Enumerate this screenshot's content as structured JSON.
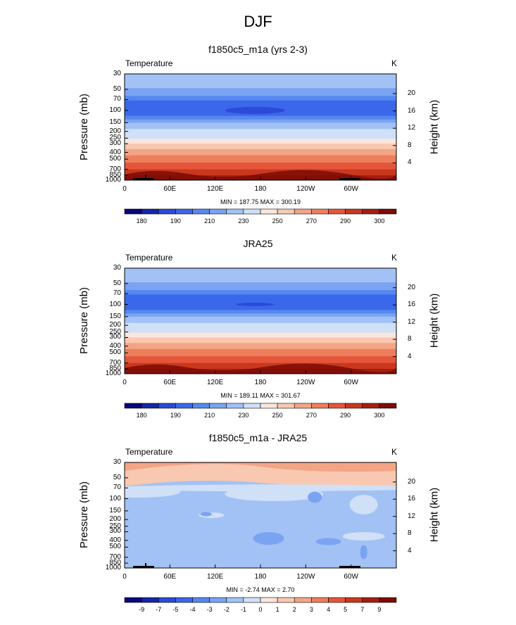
{
  "page": {
    "title": "DJF"
  },
  "chart_data": [
    {
      "type": "heatmap",
      "title": "f1850c5_m1a (yrs 2-3)",
      "variable": "Temperature",
      "units": "K",
      "ylabel": "Pressure (mb)",
      "y2label": "Height (km)",
      "xticks": [
        "0",
        "60E",
        "120E",
        "180",
        "120W",
        "60W"
      ],
      "yticks": [
        "30",
        "50",
        "70",
        "100",
        "150",
        "200",
        "250",
        "300",
        "400",
        "500",
        "700",
        "850",
        "1000"
      ],
      "heightticks": [
        "4",
        "8",
        "12",
        "16",
        "20"
      ],
      "min_max": "MIN = 187.75  MAX = 300.19",
      "colorbar_labels": [
        "180",
        "190",
        "210",
        "230",
        "250",
        "270",
        "290",
        "300"
      ],
      "ylim": [
        1000,
        30
      ],
      "xlim": [
        0,
        360
      ]
    },
    {
      "type": "heatmap",
      "title": "JRA25",
      "variable": "Temperature",
      "units": "K",
      "ylabel": "Pressure (mb)",
      "y2label": "Height (km)",
      "xticks": [
        "0",
        "60E",
        "120E",
        "180",
        "120W",
        "60W"
      ],
      "yticks": [
        "30",
        "50",
        "70",
        "100",
        "150",
        "200",
        "250",
        "300",
        "400",
        "500",
        "700",
        "850",
        "1000"
      ],
      "heightticks": [
        "4",
        "8",
        "12",
        "16",
        "20"
      ],
      "min_max": "MIN = 189.11  MAX = 301.67",
      "colorbar_labels": [
        "180",
        "190",
        "210",
        "230",
        "250",
        "270",
        "290",
        "300"
      ],
      "ylim": [
        1000,
        30
      ],
      "xlim": [
        0,
        360
      ]
    },
    {
      "type": "heatmap",
      "title": "f1850c5_m1a - JRA25",
      "variable": "Temperature",
      "units": "K",
      "ylabel": "Pressure (mb)",
      "y2label": "Height (km)",
      "xticks": [
        "0",
        "60E",
        "120E",
        "180",
        "120W",
        "60W"
      ],
      "yticks": [
        "30",
        "50",
        "70",
        "100",
        "150",
        "200",
        "250",
        "300",
        "400",
        "500",
        "700",
        "850",
        "1000"
      ],
      "heightticks": [
        "4",
        "8",
        "12",
        "16",
        "20"
      ],
      "min_max": "MIN =  -2.74  MAX =   2.70",
      "colorbar_labels": [
        "-9",
        "-7",
        "-5",
        "-4",
        "-3",
        "-2",
        "-1",
        "0",
        "1",
        "2",
        "3",
        "4",
        "5",
        "7",
        "9"
      ],
      "ylim": [
        1000,
        30
      ],
      "xlim": [
        0,
        360
      ]
    }
  ],
  "colors": {
    "scale": [
      "#08077a",
      "#1525a8",
      "#2a4bd7",
      "#3b68ea",
      "#5588f0",
      "#7aa3f2",
      "#a2c2f5",
      "#cfe0f7",
      "#fbe6dc",
      "#f8c8b0",
      "#f3a586",
      "#ed7e5c",
      "#e4553a",
      "#c9381e",
      "#a51e10",
      "#7c0c06"
    ],
    "anomaly": [
      "#08077a",
      "#1525a8",
      "#2a4bd7",
      "#3b68ea",
      "#5588f0",
      "#7aa3f2",
      "#a2c2f5",
      "#cfe0f7",
      "#fbe6dc",
      "#f8c8b0",
      "#f3a586",
      "#ed7e5c",
      "#e4553a",
      "#c9381e",
      "#a51e10",
      "#7c0c06"
    ]
  }
}
